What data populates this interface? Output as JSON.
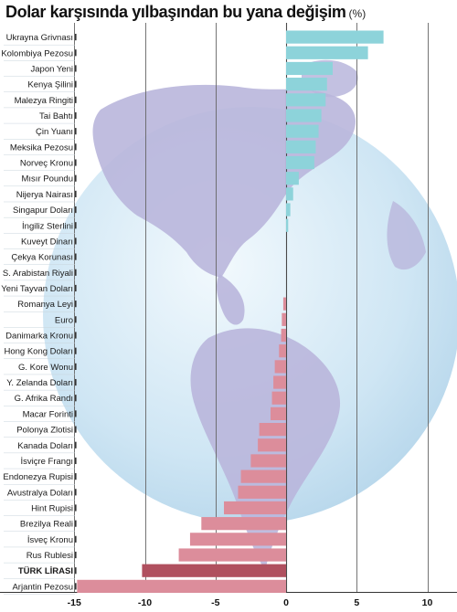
{
  "title": "Dolar karşısında yılbaşından bu yana değişim",
  "unit": "(%)",
  "colors": {
    "positive": "#8dd3da",
    "negative": "#dc8d9b",
    "highlight": "#b0505f",
    "grid": "#666666",
    "globe_sea": "#cfe6f4",
    "globe_land": "#b9b6dc"
  },
  "chart_data": {
    "type": "bar",
    "orientation": "horizontal",
    "title": "Dolar karşısında yılbaşından bu yana değişim",
    "unit": "(%)",
    "xlim": [
      -15,
      10
    ],
    "xticks": [
      "-15",
      "-10",
      "-5",
      "0",
      "5",
      "10"
    ],
    "grid": true,
    "highlight": "TÜRK LİRASI",
    "categories": [
      "Ukrayna Grivnası",
      "Kolombiya Pezosu",
      "Japon Yeni",
      "Kenya Şilini",
      "Malezya Ringiti",
      "Tai Bahtı",
      "Çin Yuanı",
      "Meksika Pezosu",
      "Norveç Kronu",
      "Mısır Poundu",
      "Nijerya Nairası",
      "Singapur Doları",
      "İngiliz Sterlini",
      "Kuveyt Dinarı",
      "Çekya Korunası",
      "S. Arabistan Riyali",
      "Yeni Tayvan Doları",
      "Romanya Leyi",
      "Euro",
      "Danimarka Kronu",
      "Hong Kong Doları",
      "G. Kore Wonu",
      "Y. Zelanda Doları",
      "G. Afrika Randı",
      "Macar Forinti",
      "Polonya Zlotisi",
      "Kanada Doları",
      "İsviçre Frangı",
      "Endonezya Rupisi",
      "Avustralya Doları",
      "Hint Rupisi",
      "Brezilya Reali",
      "İsveç Kronu",
      "Rus Rublesi",
      "TÜRK LİRASI",
      "Arjantin Pezosu"
    ],
    "values": [
      6.9,
      5.8,
      3.3,
      2.9,
      2.8,
      2.5,
      2.3,
      2.1,
      2.0,
      0.9,
      0.5,
      0.3,
      0.15,
      0.0,
      0.0,
      0.0,
      0.0,
      -0.2,
      -0.3,
      -0.35,
      -0.5,
      -0.8,
      -0.9,
      -1.0,
      -1.1,
      -1.9,
      -2.0,
      -2.5,
      -3.2,
      -3.4,
      -4.4,
      -6.0,
      -6.8,
      -7.6,
      -10.2,
      -14.8
    ]
  }
}
